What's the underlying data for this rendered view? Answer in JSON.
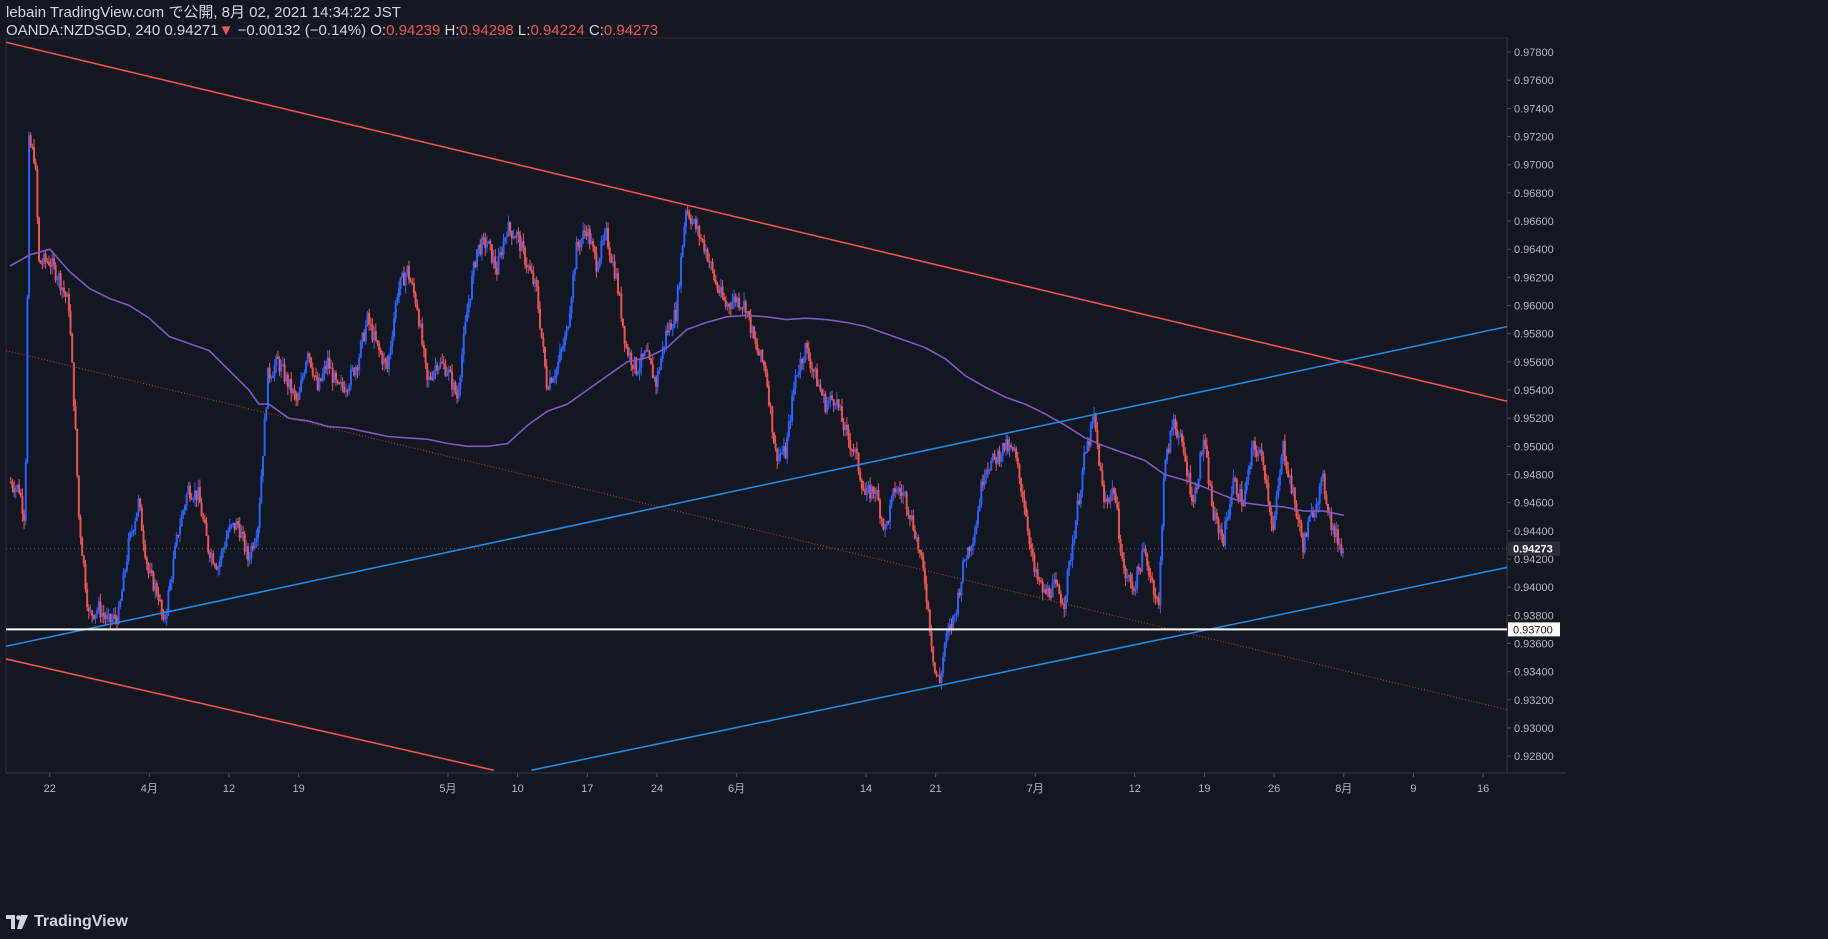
{
  "header": {
    "published_line": "lebain TradingView.com で公開, 8月 02, 2021 14:34:22 JST",
    "symbol": "OANDA:NZDSGD, 240",
    "last": "0.94271",
    "change_arrow": "▼",
    "change": "−0.00132 (−0.14%)",
    "o_label": "O:",
    "o_value": "0.94239",
    "h_label": "H:",
    "h_value": "0.94298",
    "l_label": "L:",
    "l_value": "0.94224",
    "c_label": "C:",
    "c_value": "0.94273"
  },
  "brand": {
    "name": "TradingView"
  },
  "colors": {
    "background": "#131722",
    "up": "#2962ff",
    "down": "#ef5350",
    "ma": "#7e57c2",
    "resistance": "#f05350",
    "support": "#1e88e5",
    "level": "#ffffff",
    "axis_text": "#b2b5be"
  },
  "chart_data": {
    "type": "candlestick",
    "title": "OANDA:NZDSGD, 240",
    "ylim": [
      0.9268,
      0.979
    ],
    "y_ticks": [
      "0.92800",
      "0.93000",
      "0.93200",
      "0.93400",
      "0.93600",
      "0.93800",
      "0.94000",
      "0.94200",
      "0.94400",
      "0.94600",
      "0.94800",
      "0.95000",
      "0.95200",
      "0.95400",
      "0.95600",
      "0.95800",
      "0.96000",
      "0.96200",
      "0.96400",
      "0.96600",
      "0.96800",
      "0.97000",
      "0.97200",
      "0.97400",
      "0.97600",
      "0.97800"
    ],
    "x_ticks": [
      {
        "label": "22",
        "day": 22
      },
      {
        "label": "4月",
        "day": 32
      },
      {
        "label": "12",
        "day": 40
      },
      {
        "label": "19",
        "day": 47
      },
      {
        "label": "5月",
        "day": 62
      },
      {
        "label": "10",
        "day": 69
      },
      {
        "label": "17",
        "day": 76
      },
      {
        "label": "24",
        "day": 83
      },
      {
        "label": "6月",
        "day": 91
      },
      {
        "label": "14",
        "day": 104
      },
      {
        "label": "21",
        "day": 111
      },
      {
        "label": "7月",
        "day": 121
      },
      {
        "label": "12",
        "day": 131
      },
      {
        "label": "19",
        "day": 138
      },
      {
        "label": "26",
        "day": 145
      },
      {
        "label": "8月",
        "day": 152
      },
      {
        "label": "9",
        "day": 159
      },
      {
        "label": "16",
        "day": 166
      }
    ],
    "x_range": [
      17.6,
      168.4
    ],
    "last_price": "0.94273",
    "level_price": "0.93700",
    "waypoints": [
      [
        18,
        0.9475
      ],
      [
        19,
        0.947
      ],
      [
        19.6,
        0.9448
      ],
      [
        20,
        0.9715
      ],
      [
        20.6,
        0.9705
      ],
      [
        21,
        0.963
      ],
      [
        22,
        0.9632
      ],
      [
        23,
        0.962
      ],
      [
        24,
        0.96
      ],
      [
        24.6,
        0.952
      ],
      [
        25,
        0.945
      ],
      [
        26,
        0.938
      ],
      [
        27,
        0.9385
      ],
      [
        28,
        0.9375
      ],
      [
        29,
        0.938
      ],
      [
        30,
        0.943
      ],
      [
        31,
        0.946
      ],
      [
        32,
        0.941
      ],
      [
        33,
        0.9395
      ],
      [
        33.5,
        0.9372
      ],
      [
        35,
        0.944
      ],
      [
        36,
        0.947
      ],
      [
        37,
        0.9465
      ],
      [
        38,
        0.9428
      ],
      [
        39,
        0.9415
      ],
      [
        40,
        0.944
      ],
      [
        41,
        0.9445
      ],
      [
        42,
        0.942
      ],
      [
        43,
        0.9445
      ],
      [
        44,
        0.955
      ],
      [
        45,
        0.956
      ],
      [
        46,
        0.9545
      ],
      [
        47,
        0.953
      ],
      [
        48,
        0.957
      ],
      [
        49,
        0.954
      ],
      [
        50,
        0.956
      ],
      [
        51,
        0.954
      ],
      [
        52,
        0.9545
      ],
      [
        53,
        0.956
      ],
      [
        54,
        0.959
      ],
      [
        55,
        0.957
      ],
      [
        56,
        0.9555
      ],
      [
        57,
        0.961
      ],
      [
        58,
        0.9625
      ],
      [
        59,
        0.96
      ],
      [
        60,
        0.9545
      ],
      [
        61,
        0.956
      ],
      [
        62,
        0.9555
      ],
      [
        63,
        0.9535
      ],
      [
        64,
        0.9595
      ],
      [
        65,
        0.964
      ],
      [
        66,
        0.9645
      ],
      [
        67,
        0.9625
      ],
      [
        68,
        0.9655
      ],
      [
        69,
        0.965
      ],
      [
        70,
        0.963
      ],
      [
        71,
        0.961
      ],
      [
        72,
        0.9545
      ],
      [
        73,
        0.9555
      ],
      [
        74,
        0.958
      ],
      [
        75,
        0.964
      ],
      [
        76,
        0.9655
      ],
      [
        77,
        0.963
      ],
      [
        78,
        0.965
      ],
      [
        79,
        0.962
      ],
      [
        80,
        0.957
      ],
      [
        81,
        0.9555
      ],
      [
        82,
        0.9565
      ],
      [
        83,
        0.9545
      ],
      [
        84,
        0.958
      ],
      [
        85,
        0.9595
      ],
      [
        86,
        0.967
      ],
      [
        87,
        0.9655
      ],
      [
        88,
        0.964
      ],
      [
        89,
        0.9615
      ],
      [
        90,
        0.96
      ],
      [
        91,
        0.9605
      ],
      [
        92,
        0.96
      ],
      [
        93,
        0.957
      ],
      [
        94,
        0.9555
      ],
      [
        95,
        0.9495
      ],
      [
        96,
        0.9495
      ],
      [
        97,
        0.955
      ],
      [
        98,
        0.957
      ],
      [
        99,
        0.955
      ],
      [
        100,
        0.953
      ],
      [
        101,
        0.9535
      ],
      [
        102,
        0.951
      ],
      [
        103,
        0.9495
      ],
      [
        104,
        0.9465
      ],
      [
        105,
        0.947
      ],
      [
        106,
        0.944
      ],
      [
        107,
        0.947
      ],
      [
        108,
        0.9465
      ],
      [
        109,
        0.944
      ],
      [
        110,
        0.9405
      ],
      [
        111,
        0.934
      ],
      [
        111.5,
        0.9332
      ],
      [
        112,
        0.936
      ],
      [
        113,
        0.938
      ],
      [
        114,
        0.942
      ],
      [
        115,
        0.944
      ],
      [
        116,
        0.9485
      ],
      [
        117,
        0.949
      ],
      [
        118,
        0.95
      ],
      [
        119,
        0.9495
      ],
      [
        120,
        0.946
      ],
      [
        121,
        0.941
      ],
      [
        122,
        0.9395
      ],
      [
        123,
        0.94
      ],
      [
        124,
        0.939
      ],
      [
        125,
        0.944
      ],
      [
        126,
        0.949
      ],
      [
        127,
        0.952
      ],
      [
        128,
        0.946
      ],
      [
        129,
        0.947
      ],
      [
        130,
        0.941
      ],
      [
        131,
        0.94
      ],
      [
        132,
        0.9425
      ],
      [
        133,
        0.94
      ],
      [
        133.5,
        0.9385
      ],
      [
        134,
        0.948
      ],
      [
        135,
        0.952
      ],
      [
        136,
        0.9495
      ],
      [
        137,
        0.946
      ],
      [
        138,
        0.9505
      ],
      [
        139,
        0.945
      ],
      [
        140,
        0.9435
      ],
      [
        141,
        0.9475
      ],
      [
        142,
        0.946
      ],
      [
        143,
        0.95
      ],
      [
        144,
        0.949
      ],
      [
        145,
        0.944
      ],
      [
        146,
        0.95
      ],
      [
        147,
        0.9465
      ],
      [
        148,
        0.943
      ],
      [
        149,
        0.9455
      ],
      [
        150,
        0.9475
      ],
      [
        151,
        0.944
      ],
      [
        152,
        0.9427
      ]
    ],
    "ma_points": [
      [
        18,
        0.9628
      ],
      [
        20,
        0.9636
      ],
      [
        22,
        0.964
      ],
      [
        24,
        0.9624
      ],
      [
        26,
        0.9612
      ],
      [
        28,
        0.9605
      ],
      [
        30,
        0.96
      ],
      [
        32,
        0.9591
      ],
      [
        34,
        0.9578
      ],
      [
        36,
        0.9573
      ],
      [
        38,
        0.9568
      ],
      [
        40,
        0.9554
      ],
      [
        42,
        0.954
      ],
      [
        43,
        0.953
      ],
      [
        44,
        0.953
      ],
      [
        46,
        0.952
      ],
      [
        48,
        0.9518
      ],
      [
        50,
        0.9514
      ],
      [
        52,
        0.9513
      ],
      [
        54,
        0.951
      ],
      [
        56,
        0.9507
      ],
      [
        58,
        0.9506
      ],
      [
        60,
        0.9505
      ],
      [
        62,
        0.9502
      ],
      [
        64,
        0.95
      ],
      [
        66,
        0.95
      ],
      [
        68,
        0.9502
      ],
      [
        70,
        0.9515
      ],
      [
        72,
        0.9525
      ],
      [
        74,
        0.953
      ],
      [
        76,
        0.954
      ],
      [
        78,
        0.955
      ],
      [
        80,
        0.956
      ],
      [
        82,
        0.9563
      ],
      [
        84,
        0.957
      ],
      [
        86,
        0.9583
      ],
      [
        88,
        0.9588
      ],
      [
        90,
        0.9592
      ],
      [
        92,
        0.9593
      ],
      [
        94,
        0.9592
      ],
      [
        96,
        0.959
      ],
      [
        98,
        0.9591
      ],
      [
        100,
        0.959
      ],
      [
        102,
        0.9588
      ],
      [
        104,
        0.9585
      ],
      [
        106,
        0.958
      ],
      [
        108,
        0.9575
      ],
      [
        110,
        0.957
      ],
      [
        112,
        0.9562
      ],
      [
        114,
        0.955
      ],
      [
        116,
        0.9542
      ],
      [
        118,
        0.9535
      ],
      [
        120,
        0.953
      ],
      [
        122,
        0.9523
      ],
      [
        124,
        0.9515
      ],
      [
        126,
        0.9506
      ],
      [
        128,
        0.95
      ],
      [
        130,
        0.9495
      ],
      [
        132,
        0.949
      ],
      [
        134,
        0.948
      ],
      [
        136,
        0.9476
      ],
      [
        138,
        0.9471
      ],
      [
        140,
        0.9465
      ],
      [
        142,
        0.946
      ],
      [
        144,
        0.9458
      ],
      [
        146,
        0.9457
      ],
      [
        148,
        0.9454
      ],
      [
        150,
        0.9454
      ],
      [
        152,
        0.9451
      ]
    ],
    "trendlines": [
      {
        "name": "upper-resistance",
        "color": "#f05350",
        "from": [
          17.6,
          0.9787
        ],
        "to": [
          168.4,
          0.9532
        ]
      },
      {
        "name": "lower-resistance",
        "color": "#f05350",
        "from": [
          17.6,
          0.9349
        ],
        "to": [
          66.6,
          0.927
        ]
      },
      {
        "name": "upper-support",
        "color": "#1e88e5",
        "from": [
          17.6,
          0.9358
        ],
        "to": [
          168.4,
          0.9585
        ]
      },
      {
        "name": "lower-support",
        "color": "#1e88e5",
        "from": [
          70.4,
          0.927
        ],
        "to": [
          168.4,
          0.9414
        ]
      },
      {
        "name": "mid-dotted",
        "color": "#c23b3b",
        "dashed": true,
        "from": [
          17.6,
          0.9568
        ],
        "to": [
          168.4,
          0.9313
        ]
      }
    ]
  }
}
